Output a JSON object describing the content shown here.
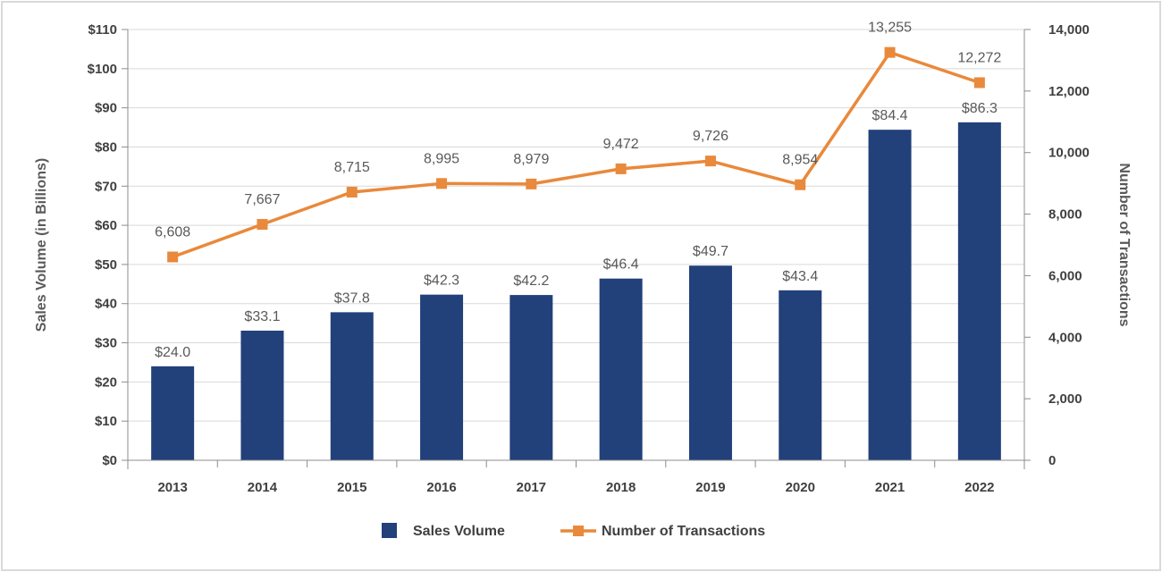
{
  "chart_data": {
    "type": "bar+line",
    "title": "",
    "categories": [
      "2013",
      "2014",
      "2015",
      "2016",
      "2017",
      "2018",
      "2019",
      "2020",
      "2021",
      "2022"
    ],
    "series": [
      {
        "name": "Sales Volume",
        "kind": "bar",
        "axis": "left",
        "values": [
          24.0,
          33.1,
          37.8,
          42.3,
          42.2,
          46.4,
          49.7,
          43.4,
          84.4,
          86.3
        ],
        "labels": [
          "$24.0",
          "$33.1",
          "$37.8",
          "$42.3",
          "$42.2",
          "$46.4",
          "$49.7",
          "$43.4",
          "$84.4",
          "$86.3"
        ],
        "color": "#22407a"
      },
      {
        "name": "Number of Transactions",
        "kind": "line",
        "axis": "right",
        "values": [
          6608,
          7667,
          8715,
          8995,
          8979,
          9472,
          9726,
          8954,
          13255,
          12272
        ],
        "labels": [
          "6,608",
          "7,667",
          "8,715",
          "8,995",
          "8,979",
          "9,472",
          "9,726",
          "8,954",
          "13,255",
          "12,272"
        ],
        "color": "#e9893b"
      }
    ],
    "ylabel": "Sales Volume (in Billions)",
    "y2label": "Number of Transactions",
    "xlabel": "",
    "ylim": [
      0,
      110
    ],
    "y2lim": [
      0,
      14000
    ],
    "yticks": [
      "$0",
      "$10",
      "$20",
      "$30",
      "$40",
      "$50",
      "$60",
      "$70",
      "$80",
      "$90",
      "$100",
      "$110"
    ],
    "y2ticks": [
      "0",
      "2,000",
      "4,000",
      "6,000",
      "8,000",
      "10,000",
      "12,000",
      "14,000"
    ],
    "grid": true,
    "legend_position": "bottom-center"
  },
  "legend": {
    "bar_label": "Sales Volume",
    "line_label": "Number of Transactions"
  }
}
